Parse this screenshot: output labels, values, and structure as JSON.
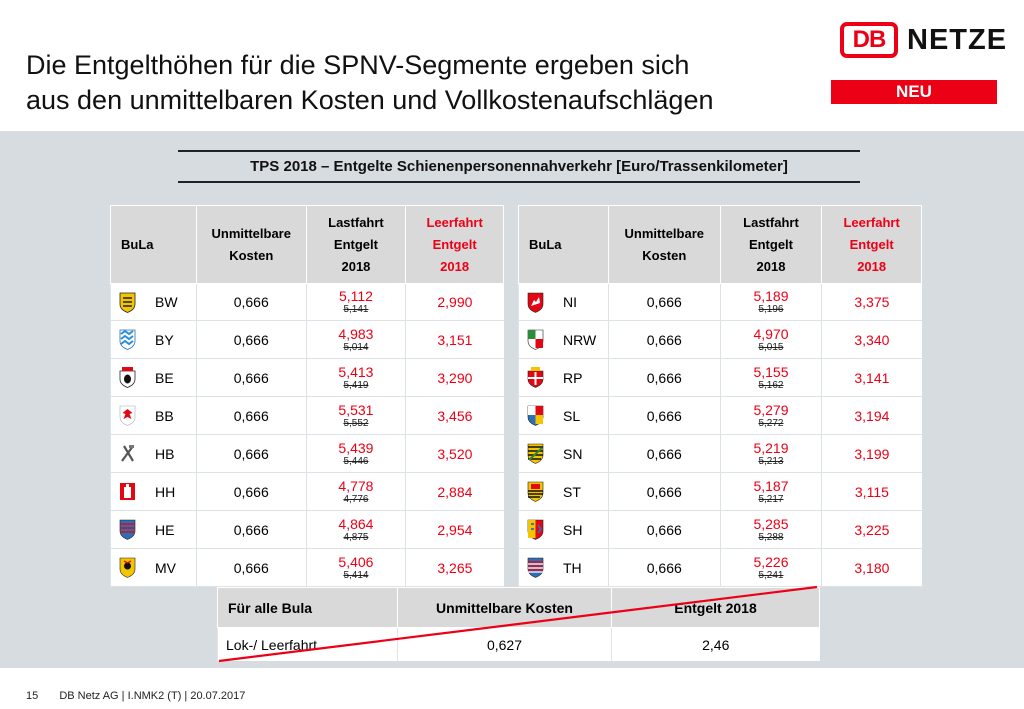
{
  "title": {
    "line1": "Die Entgelthöhen für die SPNV-Segmente ergeben sich",
    "line2": "aus den unmittelbaren Kosten und Vollkostenaufschlägen"
  },
  "logo": {
    "db": "DB",
    "netze": "NETZE"
  },
  "badge": "NEU",
  "table_title": "TPS 2018 – Entgelte Schienenpersonennahverkehr  [Euro/Trassenkilometer]",
  "headers": {
    "bula": "BuLa",
    "cost_l1": "Unmittelbare",
    "cost_l2": "Kosten",
    "last_l1": "Lastfahrt",
    "last_l2": "Entgelt",
    "last_l3": "2018",
    "leer_l1": "Leerfahrt",
    "leer_l2": "Entgelt",
    "leer_l3": "2018"
  },
  "left_rows": [
    {
      "state": "BW",
      "crest": "baden-wuerttemberg-crest",
      "cost": "0,666",
      "last": "5,112",
      "last_old": "5,141",
      "leer": "2,990"
    },
    {
      "state": "BY",
      "crest": "bavaria-crest",
      "cost": "0,666",
      "last": "4,983",
      "last_old": "5,014",
      "leer": "3,151"
    },
    {
      "state": "BE",
      "crest": "berlin-crest",
      "cost": "0,666",
      "last": "5,413",
      "last_old": "5,419",
      "leer": "3,290"
    },
    {
      "state": "BB",
      "crest": "brandenburg-crest",
      "cost": "0,666",
      "last": "5,531",
      "last_old": "5,552",
      "leer": "3,456"
    },
    {
      "state": "HB",
      "crest": "bremen-crest",
      "cost": "0,666",
      "last": "5,439",
      "last_old": "5,446",
      "leer": "3,520"
    },
    {
      "state": "HH",
      "crest": "hamburg-crest",
      "cost": "0,666",
      "last": "4,778",
      "last_old": "4,776",
      "leer": "2,884"
    },
    {
      "state": "HE",
      "crest": "hesse-crest",
      "cost": "0,666",
      "last": "4,864",
      "last_old": "4,875",
      "leer": "2,954"
    },
    {
      "state": "MV",
      "crest": "mecklenburg-crest",
      "cost": "0,666",
      "last": "5,406",
      "last_old": "5,414",
      "leer": "3,265"
    }
  ],
  "right_rows": [
    {
      "state": "NI",
      "crest": "lower-saxony-crest",
      "cost": "0,666",
      "last": "5,189",
      "last_old": "5,196",
      "leer": "3,375"
    },
    {
      "state": "NRW",
      "crest": "nrw-crest",
      "cost": "0,666",
      "last": "4,970",
      "last_old": "5,015",
      "leer": "3,340"
    },
    {
      "state": "RP",
      "crest": "rhineland-palatinate-crest",
      "cost": "0,666",
      "last": "5,155",
      "last_old": "5,162",
      "leer": "3,141"
    },
    {
      "state": "SL",
      "crest": "saarland-crest",
      "cost": "0,666",
      "last": "5,279",
      "last_old": "5,272",
      "leer": "3,194"
    },
    {
      "state": "SN",
      "crest": "saxony-crest",
      "cost": "0,666",
      "last": "5,219",
      "last_old": "5,213",
      "leer": "3,199"
    },
    {
      "state": "ST",
      "crest": "saxony-anhalt-crest",
      "cost": "0,666",
      "last": "5,187",
      "last_old": "5,217",
      "leer": "3,115"
    },
    {
      "state": "SH",
      "crest": "schleswig-holstein-crest",
      "cost": "0,666",
      "last": "5,285",
      "last_old": "5,288",
      "leer": "3,225"
    },
    {
      "state": "TH",
      "crest": "thuringia-crest",
      "cost": "0,666",
      "last": "5,226",
      "last_old": "5,241",
      "leer": "3,180"
    }
  ],
  "summary": {
    "h1": "Für alle Bula",
    "h2": "Unmittelbare Kosten",
    "h3": "Entgelt 2018",
    "label": "Lok-/ Leerfahrt",
    "cost": "0,627",
    "fee": "2,46"
  },
  "footer": {
    "page": "15",
    "text": "DB Netz AG | I.NMK2 (T) | 20.07.2017"
  },
  "colors": {
    "accent": "#ec0016",
    "band": "#d6dce0",
    "header": "#d9d9d9"
  }
}
